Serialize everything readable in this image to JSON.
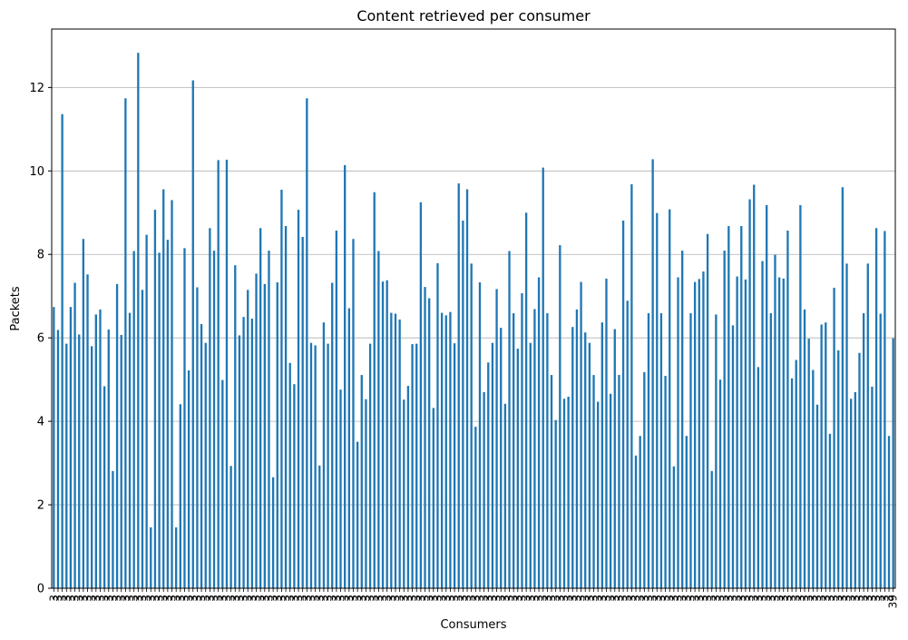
{
  "chart_data": {
    "type": "bar",
    "title": "Content retrieved per consumer",
    "xlabel": "Consumers",
    "ylabel": "Packets",
    "ylim": [
      0,
      13.4
    ],
    "yticks": [
      0,
      2,
      4,
      6,
      8,
      10,
      12
    ],
    "grid": "y",
    "legend": "none",
    "colors": {
      "bar": "#1f77b4",
      "grid": "#b0b0b0",
      "axis": "#000000"
    },
    "tick_label_pattern": "3",
    "tick_label_last": "39",
    "values": [
      6.74,
      6.19,
      11.36,
      5.86,
      6.74,
      7.32,
      6.08,
      8.37,
      7.52,
      5.8,
      6.56,
      6.68,
      4.84,
      6.2,
      2.81,
      7.29,
      6.07,
      11.74,
      6.6,
      8.08,
      12.83,
      7.15,
      8.47,
      1.46,
      9.07,
      8.04,
      9.56,
      8.35,
      9.3,
      1.46,
      4.41,
      8.15,
      5.22,
      12.17,
      7.21,
      6.33,
      5.88,
      8.63,
      8.09,
      10.26,
      4.99,
      10.27,
      2.93,
      7.74,
      6.06,
      6.5,
      7.15,
      6.46,
      7.54,
      8.63,
      7.29,
      8.09,
      2.66,
      7.33,
      9.55,
      8.68,
      5.4,
      4.89,
      9.07,
      8.42,
      11.74,
      5.88,
      5.82,
      2.94,
      6.37,
      5.86,
      7.32,
      8.57,
      4.76,
      10.14,
      6.71,
      8.37,
      3.51,
      5.11,
      4.53,
      5.86,
      9.49,
      8.08,
      7.35,
      7.38,
      6.6,
      6.58,
      6.44,
      4.52,
      4.85,
      5.85,
      5.86,
      9.25,
      7.22,
      6.95,
      4.32,
      7.79,
      6.6,
      6.54,
      6.62,
      5.87,
      9.7,
      8.81,
      9.56,
      7.78,
      3.87,
      7.33,
      4.7,
      5.41,
      5.88,
      7.17,
      6.24,
      4.42,
      8.08,
      6.59,
      5.74,
      7.07,
      9.0,
      5.88,
      6.69,
      7.45,
      10.08,
      6.59,
      5.11,
      4.03,
      8.22,
      4.54,
      4.59,
      6.26,
      6.68,
      7.34,
      6.13,
      5.88,
      5.11,
      4.47,
      6.37,
      7.42,
      4.66,
      6.21,
      5.11,
      8.81,
      6.89,
      9.68,
      3.18,
      3.65,
      5.18,
      6.59,
      10.28,
      8.99,
      6.59,
      5.09,
      9.08,
      2.92,
      7.45,
      8.09,
      3.65,
      6.59,
      7.34,
      7.41,
      7.59,
      8.49,
      2.81,
      6.56,
      5.0,
      8.09,
      8.68,
      6.3,
      7.47,
      8.68,
      7.4,
      9.32,
      9.67,
      5.3,
      7.84,
      9.18,
      6.59,
      7.99,
      7.45,
      7.42,
      8.57,
      5.03,
      5.47,
      9.18,
      6.68,
      5.98,
      5.23,
      4.4,
      6.32,
      6.37,
      3.7,
      7.2,
      5.7,
      9.61,
      7.78,
      4.54,
      4.7,
      5.64,
      6.59,
      7.78,
      4.83,
      8.63,
      6.58,
      8.56,
      3.65,
      5.99
    ]
  }
}
